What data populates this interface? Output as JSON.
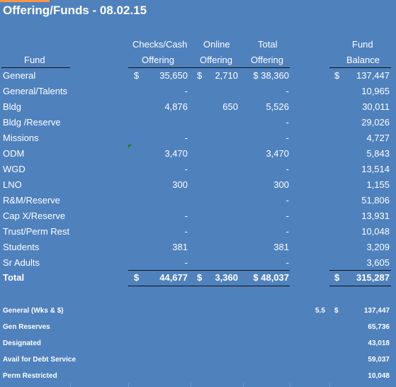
{
  "title": "Offering/Funds - 08.02.15",
  "headers": {
    "fund": "Fund",
    "checks_line1": "Checks/Cash",
    "checks_line2": "Offering",
    "online_line1": "Online",
    "online_line2": "Offering",
    "total_line1": "Total",
    "total_line2": "Offering",
    "balance_line1": "Fund",
    "balance_line2": "Balance"
  },
  "rows": [
    {
      "fund": "General",
      "checks_cur": "$",
      "checks": "35,650",
      "online_cur": "$",
      "online": "2,710",
      "total": "$ 38,360",
      "bal_cur": "$",
      "balance": "137,447"
    },
    {
      "fund": "General/Talents",
      "checks": "-",
      "online": "",
      "total": "-",
      "balance": "10,965"
    },
    {
      "fund": "Bldg",
      "checks": "4,876",
      "online": "650",
      "total": "5,526",
      "balance": "30,011"
    },
    {
      "fund": "Bldg /Reserve",
      "checks": "",
      "online": "",
      "total": "-",
      "balance": "29,026"
    },
    {
      "fund": "Missions",
      "checks": "-",
      "online": "",
      "total": "-",
      "balance": "4,727"
    },
    {
      "fund": "ODM",
      "checks": "3,470",
      "online": "",
      "total": "3,470",
      "balance": "5,843"
    },
    {
      "fund": "WGD",
      "checks": "-",
      "online": "",
      "total": "-",
      "balance": "13,514"
    },
    {
      "fund": "LNO",
      "checks": "300",
      "online": "",
      "total": "300",
      "balance": "1,155"
    },
    {
      "fund": "R&M/Reserve",
      "checks": "",
      "online": "",
      "total": "-",
      "balance": "51,806"
    },
    {
      "fund": "Cap X/Reserve",
      "checks": "-",
      "online": "",
      "total": "-",
      "balance": "13,931"
    },
    {
      "fund": "Trust/Perm Rest",
      "checks": "-",
      "online": "",
      "total": "-",
      "balance": "10,048"
    },
    {
      "fund": "Students",
      "checks": "381",
      "online": "",
      "total": "381",
      "balance": "3,209"
    },
    {
      "fund": "Sr Adults",
      "checks": "-",
      "online": "",
      "total": "-",
      "balance": "3,605"
    }
  ],
  "total_row": {
    "fund": "Total",
    "checks_cur": "$",
    "checks": "44,677",
    "online_cur": "$",
    "online": "3,360",
    "total": "$ 48,037",
    "bal_cur": "$",
    "balance": "315,287"
  },
  "summary": [
    {
      "label": "General (Wks & $)",
      "weeks": "5.5",
      "cur": "$",
      "value": "137,447"
    },
    {
      "label": "Gen Reserves",
      "value": "65,736"
    },
    {
      "label": "Designated",
      "value": "43,018"
    },
    {
      "label": "Avail for Debt Service",
      "value": "59,037"
    },
    {
      "label": "Perm Restricted",
      "value": "10,048"
    }
  ],
  "colors": {
    "background": "#4f81bd",
    "accent": "#f79646",
    "rule": "#111111"
  }
}
